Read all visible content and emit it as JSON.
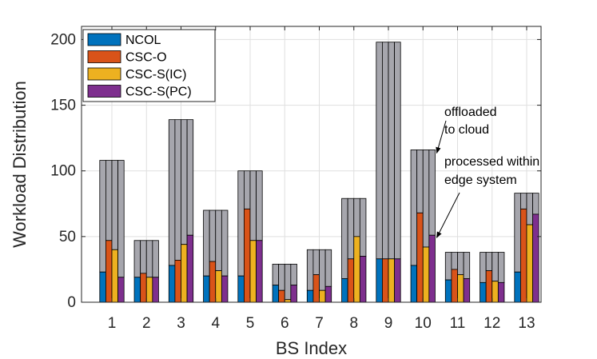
{
  "chart_data": {
    "type": "bar",
    "subtype": "grouped-stacked",
    "title": "",
    "xlabel": "BS Index",
    "ylabel": "Workload Distribution",
    "ylim": [
      0,
      210
    ],
    "yticks": [
      0,
      50,
      100,
      150,
      200
    ],
    "categories": [
      "1",
      "2",
      "3",
      "4",
      "5",
      "6",
      "7",
      "8",
      "9",
      "10",
      "11",
      "12",
      "13"
    ],
    "grid": true,
    "legend_position": "top-left",
    "offload_color": "#a6a6ad",
    "series": [
      {
        "name": "NCOL",
        "color": "#0072bd",
        "processed": [
          23,
          19,
          28,
          20,
          20,
          13,
          9,
          18,
          33,
          28,
          17,
          15,
          23
        ],
        "total": [
          108,
          47,
          139,
          70,
          100,
          29,
          40,
          79,
          198,
          116,
          38,
          38,
          83
        ]
      },
      {
        "name": "CSC-O",
        "color": "#d95319",
        "processed": [
          47,
          22,
          32,
          31,
          71,
          9,
          21,
          33,
          33,
          68,
          25,
          24,
          71
        ],
        "total": [
          108,
          47,
          139,
          70,
          100,
          29,
          40,
          79,
          198,
          116,
          38,
          38,
          83
        ]
      },
      {
        "name": "CSC-S(IC)",
        "color": "#edb120",
        "processed": [
          40,
          19,
          44,
          24,
          47,
          2,
          9,
          50,
          33,
          42,
          21,
          16,
          59
        ],
        "total": [
          108,
          47,
          139,
          70,
          100,
          29,
          40,
          79,
          198,
          116,
          38,
          38,
          83
        ]
      },
      {
        "name": "CSC-S(PC)",
        "color": "#7e2f8e",
        "processed": [
          19,
          19,
          51,
          20,
          47,
          13,
          12,
          35,
          33,
          51,
          18,
          15,
          67
        ],
        "total": [
          108,
          47,
          139,
          70,
          100,
          29,
          40,
          79,
          198,
          116,
          38,
          38,
          83
        ]
      }
    ],
    "annotations": [
      {
        "text_lines": [
          "offloaded",
          "to cloud"
        ],
        "target_category": "10",
        "target": "offload"
      },
      {
        "text_lines": [
          "processed within",
          "edge system"
        ],
        "target_category": "10",
        "target": "processed"
      }
    ]
  }
}
